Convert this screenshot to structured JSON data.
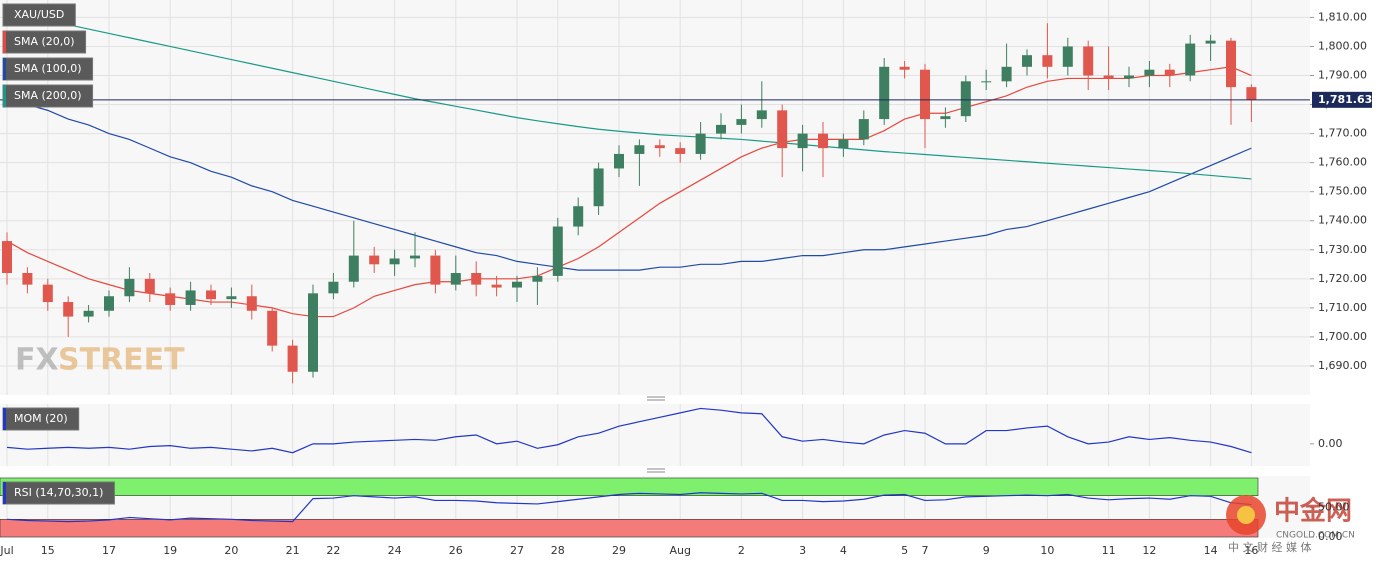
{
  "chart_data": [
    {
      "type": "candlestick",
      "title": "XAU/USD",
      "categories": [
        "Jul",
        null,
        "15",
        null,
        null,
        "17",
        null,
        null,
        "19",
        null,
        null,
        "20",
        null,
        null,
        "21",
        null,
        "22",
        null,
        null,
        "24",
        null,
        null,
        "26",
        null,
        null,
        "27",
        null,
        "28",
        null,
        null,
        "29",
        null,
        null,
        "Aug",
        null,
        null,
        "2",
        null,
        null,
        "3",
        null,
        "4",
        null,
        null,
        "5",
        "7",
        null,
        null,
        "9",
        null,
        null,
        "10",
        null,
        null,
        "11",
        null,
        "12",
        null,
        null,
        "14",
        null,
        "16"
      ],
      "open": [
        1733,
        1722,
        1718,
        1712,
        1707,
        1709,
        1714,
        1720,
        1715,
        1711,
        1716,
        1713,
        1714,
        1709,
        1697,
        1688,
        1715,
        1719,
        1728,
        1725,
        1727,
        1728,
        1718,
        1722,
        1718,
        1717,
        1719,
        1721,
        1738,
        1745,
        1758,
        1763,
        1766,
        1765,
        1763,
        1770,
        1773,
        1775,
        1778,
        1765,
        1770,
        1765,
        1768,
        1775,
        1793,
        1792,
        1775,
        1776,
        1788,
        1788,
        1793,
        1797,
        1793,
        1800,
        1790,
        1789,
        1790,
        1792,
        1790,
        1801,
        1802,
        1786
      ],
      "high": [
        1736,
        1724,
        1720,
        1714,
        1711,
        1716,
        1724,
        1722,
        1717,
        1719,
        1718,
        1717,
        1718,
        1710,
        1699,
        1718,
        1722,
        1740,
        1731,
        1730,
        1736,
        1730,
        1728,
        1726,
        1721,
        1721,
        1724,
        1741,
        1748,
        1760,
        1766,
        1768,
        1768,
        1767,
        1774,
        1777,
        1780,
        1788,
        1780,
        1773,
        1774,
        1770,
        1778,
        1796,
        1795,
        1794,
        1779,
        1790,
        1792,
        1801,
        1799,
        1808,
        1803,
        1802,
        1800,
        1793,
        1795,
        1794,
        1804,
        1804,
        1803,
        1787
      ],
      "low": [
        1718,
        1715,
        1709,
        1700,
        1705,
        1707,
        1712,
        1712,
        1709,
        1709,
        1711,
        1710,
        1706,
        1695,
        1684,
        1686,
        1713,
        1717,
        1722,
        1721,
        1724,
        1715,
        1716,
        1714,
        1714,
        1712,
        1711,
        1719,
        1735,
        1742,
        1755,
        1752,
        1762,
        1760,
        1761,
        1768,
        1770,
        1772,
        1755,
        1757,
        1755,
        1762,
        1766,
        1773,
        1789,
        1765,
        1772,
        1774,
        1785,
        1786,
        1790,
        1789,
        1790,
        1785,
        1785,
        1786,
        1786,
        1786,
        1788,
        1795,
        1773,
        1774
      ],
      "close": [
        1722,
        1718,
        1712,
        1707,
        1709,
        1714,
        1720,
        1715,
        1711,
        1716,
        1713,
        1714,
        1709,
        1697,
        1688,
        1715,
        1719,
        1728,
        1725,
        1727,
        1728,
        1718,
        1722,
        1718,
        1717,
        1719,
        1721,
        1738,
        1745,
        1758,
        1763,
        1766,
        1765,
        1763,
        1770,
        1773,
        1775,
        1778,
        1765,
        1770,
        1765,
        1768,
        1775,
        1793,
        1792,
        1775,
        1776,
        1788,
        1788,
        1793,
        1797,
        1793,
        1800,
        1790,
        1789,
        1790,
        1792,
        1790,
        1801,
        1802,
        1786,
        1781.63
      ],
      "up_color": "#3d7f60",
      "down_color": "#e0574d",
      "series": [
        {
          "name": "SMA (20,0)",
          "color": "#e8473d",
          "values": [
            1733,
            1729,
            1726,
            1723,
            1720,
            1718,
            1716,
            1715,
            1714,
            1713,
            1712,
            1712,
            1711,
            1710,
            1708,
            1707,
            1707,
            1710,
            1714,
            1716,
            1718,
            1719,
            1719,
            1720,
            1720,
            1720,
            1721,
            1724,
            1727,
            1731,
            1736,
            1741,
            1746,
            1750,
            1754,
            1758,
            1762,
            1765,
            1767,
            1768,
            1768,
            1768,
            1768,
            1771,
            1775,
            1777,
            1777,
            1779,
            1781,
            1783,
            1786,
            1788,
            1789,
            1789,
            1789,
            1789,
            1790,
            1790,
            1791,
            1792,
            1793,
            1790
          ]
        },
        {
          "name": "SMA (100,0)",
          "color": "#1f4aa8",
          "values": [
            1783,
            1780,
            1778,
            1775,
            1773,
            1770,
            1768,
            1765,
            1762,
            1760,
            1757,
            1755,
            1752,
            1750,
            1747,
            1745,
            1743,
            1741,
            1739,
            1737,
            1735,
            1733,
            1731,
            1729,
            1728,
            1726,
            1725,
            1724,
            1723,
            1723,
            1723,
            1723,
            1724,
            1724,
            1725,
            1725,
            1726,
            1726,
            1727,
            1728,
            1728,
            1729,
            1730,
            1730,
            1731,
            1732,
            1733,
            1734,
            1735,
            1737,
            1738,
            1740,
            1742,
            1744,
            1746,
            1748,
            1750,
            1753,
            1756,
            1759,
            1762,
            1765
          ]
        },
        {
          "name": "SMA (200,0)",
          "color": "#1a9a86",
          "values": [
            1812,
            1810.5,
            1809,
            1807.5,
            1806,
            1804.5,
            1803,
            1801.5,
            1800,
            1798.5,
            1797,
            1795.5,
            1794,
            1792.5,
            1791,
            1789.5,
            1788,
            1786.5,
            1785,
            1783.5,
            1782,
            1780.7,
            1779.4,
            1778.1,
            1776.8,
            1775.5,
            1774.4,
            1773.4,
            1772.4,
            1771.5,
            1770.8,
            1770.2,
            1769.6,
            1769.2,
            1768.8,
            1768.4,
            1768,
            1767.4,
            1766.8,
            1766.2,
            1765.6,
            1765,
            1764.4,
            1763.8,
            1763.3,
            1762.8,
            1762.3,
            1761.8,
            1761.3,
            1760.8,
            1760.3,
            1759.8,
            1759.3,
            1758.8,
            1758.3,
            1757.8,
            1757.3,
            1756.8,
            1756.2,
            1755.6,
            1755,
            1754.4
          ]
        }
      ],
      "ylim": [
        1680,
        1816
      ],
      "yticks": [
        {
          "value": 1690,
          "label": "1,690.00"
        },
        {
          "value": 1700,
          "label": "1,700.00"
        },
        {
          "value": 1710,
          "label": "1,710.00"
        },
        {
          "value": 1720,
          "label": "1,720.00"
        },
        {
          "value": 1730,
          "label": "1,730.00"
        },
        {
          "value": 1740,
          "label": "1,740.00"
        },
        {
          "value": 1750,
          "label": "1,750.00"
        },
        {
          "value": 1760,
          "label": "1,760.00"
        },
        {
          "value": 1770,
          "label": "1,770.00"
        },
        {
          "value": 1780,
          "label": "1,780.00"
        },
        {
          "value": 1790,
          "label": "1,790.00"
        },
        {
          "value": 1800,
          "label": "1,800.00"
        },
        {
          "value": 1810,
          "label": "1,810.00"
        }
      ],
      "grid": true,
      "last_price": {
        "value": 1781.63,
        "label": "1,781.63",
        "color": "#1b2a5a"
      }
    },
    {
      "type": "line",
      "series": [
        {
          "name": "MOM (20)",
          "color": "#2236c8",
          "values": [
            -4,
            -6,
            -5,
            -4,
            -5,
            -4,
            -6,
            -3,
            -2,
            -5,
            -4,
            -6,
            -8,
            -5,
            -10,
            0,
            0,
            2,
            3,
            4,
            5,
            4,
            8,
            10,
            0,
            3,
            -5,
            -1,
            8,
            12,
            20,
            25,
            30,
            35,
            40,
            38,
            35,
            34,
            8,
            3,
            5,
            2,
            0,
            10,
            15,
            12,
            0,
            0,
            15,
            15,
            18,
            20,
            8,
            0,
            2,
            8,
            5,
            7,
            4,
            2,
            -3,
            -10
          ]
        }
      ],
      "ylim": [
        -25,
        45
      ],
      "yticks": [
        {
          "value": 0,
          "label": "0.00"
        }
      ]
    },
    {
      "type": "line",
      "series": [
        {
          "name": "RSI (14,70,30,1)",
          "color": "#2236c8",
          "values": [
            30,
            28,
            27,
            26,
            27,
            29,
            33,
            31,
            29,
            32,
            31,
            30,
            28,
            27,
            26,
            65,
            66,
            70,
            68,
            66,
            68,
            62,
            62,
            61,
            58,
            57,
            56,
            60,
            64,
            68,
            72,
            74,
            73,
            72,
            75,
            74,
            73,
            74,
            62,
            62,
            60,
            61,
            64,
            71,
            72,
            62,
            63,
            68,
            69,
            70,
            71,
            70,
            72,
            66,
            63,
            65,
            66,
            64,
            70,
            69,
            58,
            55
          ]
        }
      ],
      "ylim": [
        0,
        100
      ],
      "yticks": [
        {
          "value": 50,
          "label": "50.00"
        },
        {
          "value": 0,
          "label": "0.00"
        }
      ],
      "bands": [
        {
          "from": 70,
          "to": 100,
          "color": "#7ff06e"
        },
        {
          "from": 0,
          "to": 30,
          "color": "#f57b7b"
        }
      ]
    }
  ],
  "watermarks": {
    "fx": "FX",
    "street": "STREET",
    "cngold": "中金网",
    "cngold_url": "CNGOLD.COM.CN",
    "cngold_tagline": "中 文 财 经 媒 体"
  }
}
